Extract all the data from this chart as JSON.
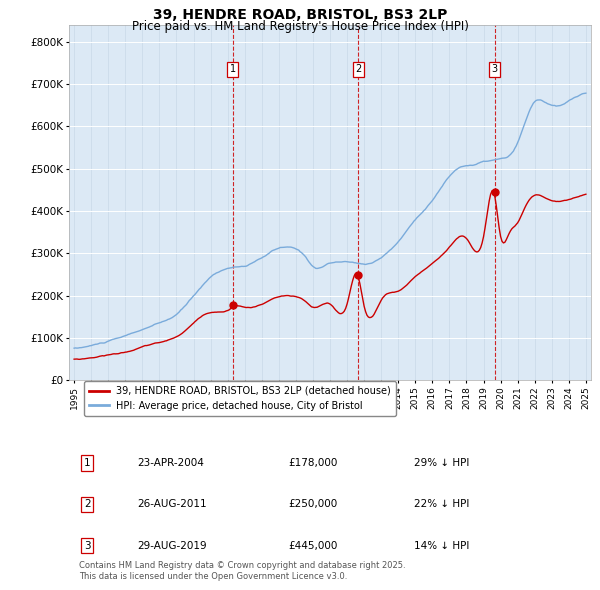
{
  "title": "39, HENDRE ROAD, BRISTOL, BS3 2LP",
  "subtitle": "Price paid vs. HM Land Registry's House Price Index (HPI)",
  "plot_bg_color": "#dce9f5",
  "hpi_color": "#7aabdb",
  "price_color": "#cc0000",
  "sale_line_color": "#cc0000",
  "ylim": [
    0,
    840000
  ],
  "yticks": [
    0,
    100000,
    200000,
    300000,
    400000,
    500000,
    600000,
    700000,
    800000
  ],
  "ytick_labels": [
    "£0",
    "£100K",
    "£200K",
    "£300K",
    "£400K",
    "£500K",
    "£600K",
    "£700K",
    "£800K"
  ],
  "sales": [
    {
      "date_num": 2004.31,
      "price": 178000,
      "label": "1"
    },
    {
      "date_num": 2011.65,
      "price": 250000,
      "label": "2"
    },
    {
      "date_num": 2019.66,
      "price": 445000,
      "label": "3"
    }
  ],
  "sale_details": [
    {
      "num": "1",
      "date": "23-APR-2004",
      "price": "£178,000",
      "pct": "29% ↓ HPI"
    },
    {
      "num": "2",
      "date": "26-AUG-2011",
      "price": "£250,000",
      "pct": "22% ↓ HPI"
    },
    {
      "num": "3",
      "date": "29-AUG-2019",
      "price": "£445,000",
      "pct": "14% ↓ HPI"
    }
  ],
  "legend_line1": "39, HENDRE ROAD, BRISTOL, BS3 2LP (detached house)",
  "legend_line2": "HPI: Average price, detached house, City of Bristol",
  "footnote": "Contains HM Land Registry data © Crown copyright and database right 2025.\nThis data is licensed under the Open Government Licence v3.0."
}
